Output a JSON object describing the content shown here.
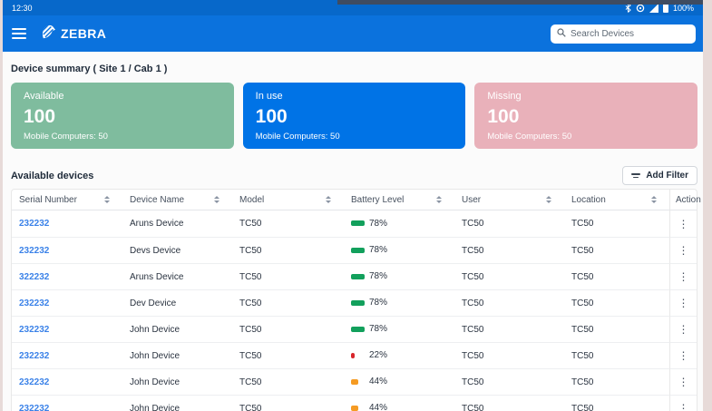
{
  "status_bar": {
    "time": "12:30",
    "battery_level": "100%"
  },
  "app_bar": {
    "brand": "ZEBRA",
    "search": {
      "placeholder": "Search Devices"
    }
  },
  "summary": {
    "title": "Device summary ( Site 1 / Cab 1 )",
    "cards": [
      {
        "label": "Available",
        "value": "100",
        "sub": "Mobile Computers: 50",
        "color": "#7fbc9e"
      },
      {
        "label": "In use",
        "value": "100",
        "sub": "Mobile Computers: 50",
        "color": "#0073e6"
      },
      {
        "label": "Missing",
        "value": "100",
        "sub": "Mobile Computers: 50",
        "color": "#e9b1ba"
      }
    ]
  },
  "devices": {
    "title": "Available devices",
    "filter_button": "Add Filter",
    "columns": [
      "Serial Number",
      "Device Name",
      "Model",
      "Battery Level",
      "User",
      "Location",
      "Action"
    ],
    "rows": [
      {
        "serial": "232232",
        "name": "Aruns Device",
        "model": "TC50",
        "battery_pct": 78,
        "battery_color": "#12a05c",
        "user": "TC50",
        "location": "TC50"
      },
      {
        "serial": "232232",
        "name": "Devs Device",
        "model": "TC50",
        "battery_pct": 78,
        "battery_color": "#12a05c",
        "user": "TC50",
        "location": "TC50"
      },
      {
        "serial": "322232",
        "name": "Aruns Device",
        "model": "TC50",
        "battery_pct": 78,
        "battery_color": "#12a05c",
        "user": "TC50",
        "location": "TC50"
      },
      {
        "serial": "232232",
        "name": "Dev Device",
        "model": "TC50",
        "battery_pct": 78,
        "battery_color": "#12a05c",
        "user": "TC50",
        "location": "TC50"
      },
      {
        "serial": "232232",
        "name": "John Device",
        "model": "TC50",
        "battery_pct": 78,
        "battery_color": "#12a05c",
        "user": "TC50",
        "location": "TC50"
      },
      {
        "serial": "232232",
        "name": "John Device",
        "model": "TC50",
        "battery_pct": 22,
        "battery_color": "#d8262c",
        "user": "TC50",
        "location": "TC50"
      },
      {
        "serial": "232232",
        "name": "John Device",
        "model": "TC50",
        "battery_pct": 44,
        "battery_color": "#f59b23",
        "user": "TC50",
        "location": "TC50"
      },
      {
        "serial": "232232",
        "name": "John Device",
        "model": "TC50",
        "battery_pct": 44,
        "battery_color": "#f59b23",
        "user": "TC50",
        "location": "TC50"
      }
    ]
  }
}
